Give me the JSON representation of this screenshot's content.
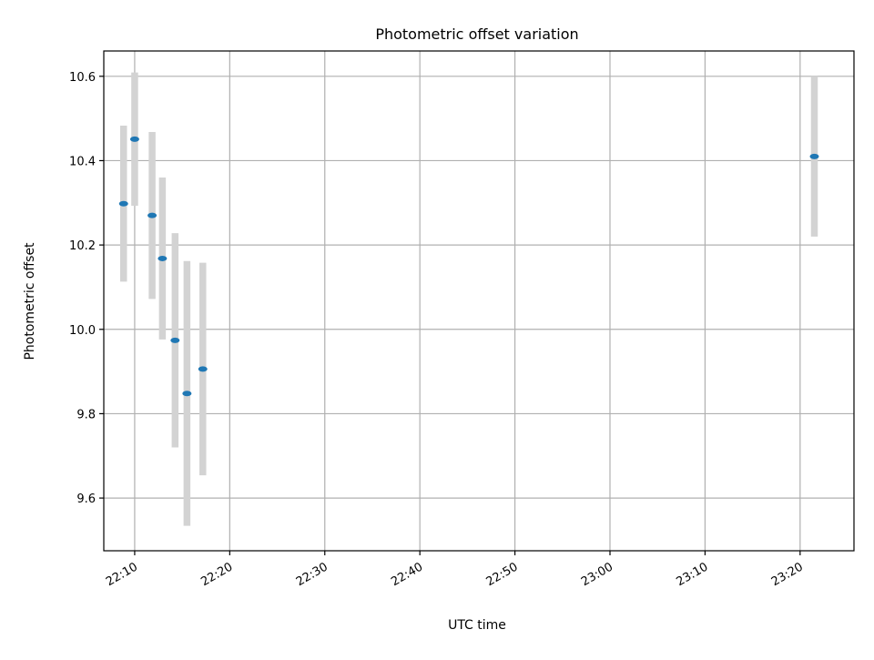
{
  "chart_data": {
    "type": "scatter",
    "title": "Photometric offset variation",
    "xlabel": "UTC time",
    "ylabel": "Photometric offset",
    "x_axis": {
      "kind": "time",
      "range": [
        "22:06:45",
        "23:25:40"
      ],
      "ticks": [
        "22:10",
        "22:20",
        "22:30",
        "22:40",
        "22:50",
        "23:00",
        "23:10",
        "23:20"
      ]
    },
    "y_axis": {
      "range": [
        9.475,
        10.66
      ],
      "ticks": [
        "9.6",
        "9.8",
        "10.0",
        "10.2",
        "10.4",
        "10.6"
      ]
    },
    "grid": true,
    "legend": "none",
    "marker_color": "#1f77b4",
    "errorbar_color": "#d3d3d3",
    "points": [
      {
        "x": "22:08:50",
        "y": 10.298,
        "err": 0.185
      },
      {
        "x": "22:10:00",
        "y": 10.451,
        "err": 0.158
      },
      {
        "x": "22:11:50",
        "y": 10.27,
        "err": 0.198
      },
      {
        "x": "22:12:55",
        "y": 10.168,
        "err": 0.192
      },
      {
        "x": "22:14:15",
        "y": 9.974,
        "err": 0.254
      },
      {
        "x": "22:15:30",
        "y": 9.848,
        "err": 0.314
      },
      {
        "x": "22:17:10",
        "y": 9.906,
        "err": 0.252
      },
      {
        "x": "23:21:30",
        "y": 10.41,
        "err": 0.19
      }
    ]
  }
}
